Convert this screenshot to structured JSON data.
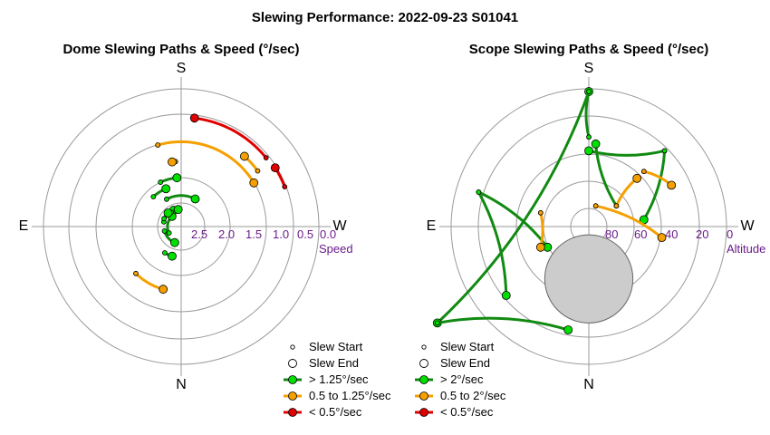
{
  "title": "Slewing Performance: 2022-09-23 S01041",
  "colors": {
    "fast": "#00e000",
    "fast_edge": "#0b7a0b",
    "medium": "#f5a000",
    "medium_edge": "#8a5a00",
    "slow": "#e00000",
    "slow_edge": "#7a0000",
    "grid": "#9a9a9a",
    "ring_label": "#6a1b8a",
    "moon_fill": "#cccccc",
    "moon_edge": "#666666"
  },
  "chart_data": [
    {
      "type": "polar",
      "title": "Dome Slewing Paths & Speed (°/sec)",
      "cardinals": {
        "top": "S",
        "bottom": "N",
        "left": "E",
        "right": "W"
      },
      "radial_axis": {
        "label": "Speed",
        "ticks": [
          "2.5",
          "2.0",
          "1.5",
          "1.0",
          "0.5",
          "0.0"
        ],
        "range": [
          2.5,
          0.0
        ]
      },
      "legend": [
        "Slew Start",
        "Slew End",
        "> 1.25°/sec",
        "0.5 to 1.25°/sec",
        "< 0.5°/sec"
      ],
      "paths": [
        {
          "speed": "fast",
          "r": 0.95,
          "start": 118,
          "end": 63
        },
        {
          "speed": "fast",
          "r": 0.55,
          "start": 165,
          "end": 115
        },
        {
          "speed": "fast",
          "r": 0.53,
          "start": 195,
          "end": 248
        },
        {
          "speed": "fast",
          "r": 0.42,
          "start": 208,
          "end": 132
        },
        {
          "speed": "fast",
          "r": 0.53,
          "start": 125,
          "end": 100
        },
        {
          "speed": "fast",
          "r": 0.58,
          "start": 155,
          "end": 134
        },
        {
          "speed": "fast",
          "r": 1.25,
          "start": 133,
          "end": 112
        },
        {
          "speed": "fast",
          "r": 0.95,
          "start": 238,
          "end": 253
        },
        {
          "speed": "fast",
          "r": 1.5,
          "start": 115,
          "end": 95
        },
        {
          "speed": "medium",
          "r": 2.0,
          "start": 95,
          "end": 98,
          "via": 140
        },
        {
          "speed": "medium",
          "r": 2.0,
          "start": 226,
          "end": 254,
          "via": 250
        },
        {
          "speed": "medium",
          "r": 2.6,
          "start": 106,
          "end": 31
        },
        {
          "speed": "medium",
          "r": 2.9,
          "start": 36,
          "end": 48
        },
        {
          "speed": "slow",
          "r": 3.35,
          "start": 39,
          "end": 83
        },
        {
          "speed": "slow",
          "r": 3.4,
          "start": 21,
          "end": 32
        }
      ]
    },
    {
      "type": "polar",
      "title": "Scope Slewing Paths & Speed (°/sec)",
      "cardinals": {
        "top": "S",
        "bottom": "N",
        "left": "E",
        "right": "W"
      },
      "radial_axis": {
        "label": "Altitude",
        "ticks": [
          "80",
          "60",
          "40",
          "20",
          "0"
        ],
        "range": [
          90,
          0
        ]
      },
      "legend": [
        "Slew Start",
        "Slew End",
        "> 2°/sec",
        "0.5 to 2°/sec",
        "< 0.5°/sec"
      ],
      "paths": [
        {
          "speed": "fast",
          "from": [
            0.2,
            0.15
          ],
          "to": [
            0.05,
            0.6
          ]
        },
        {
          "speed": "fast",
          "from": [
            0.0,
            0.65
          ],
          "to": [
            0.0,
            0.98
          ]
        },
        {
          "speed": "fast",
          "from": [
            0.0,
            0.98
          ],
          "to": [
            -1.1,
            -0.7
          ]
        },
        {
          "speed": "fast",
          "from": [
            -1.1,
            -0.7
          ],
          "to": [
            -0.15,
            -0.75
          ]
        },
        {
          "speed": "fast",
          "from": [
            -0.8,
            0.25
          ],
          "to": [
            -0.3,
            -0.15
          ]
        },
        {
          "speed": "fast",
          "from": [
            -0.8,
            0.25
          ],
          "to": [
            -0.6,
            -0.5
          ]
        },
        {
          "speed": "fast",
          "from": [
            0.55,
            0.55
          ],
          "to": [
            0.0,
            0.55
          ]
        },
        {
          "speed": "fast",
          "from": [
            0.55,
            0.55
          ],
          "to": [
            0.4,
            0.05
          ]
        },
        {
          "speed": "medium",
          "from": [
            -0.35,
            0.1
          ],
          "to": [
            -0.35,
            -0.15
          ]
        },
        {
          "speed": "medium",
          "from": [
            0.05,
            0.15
          ],
          "to": [
            0.53,
            -0.08
          ]
        },
        {
          "speed": "medium",
          "from": [
            0.2,
            0.15
          ],
          "to": [
            0.35,
            0.35
          ]
        },
        {
          "speed": "medium",
          "from": [
            0.4,
            0.4
          ],
          "to": [
            0.6,
            0.3
          ]
        }
      ],
      "moon": {
        "cx": 0.0,
        "cy": -0.38,
        "r": 0.32
      }
    }
  ]
}
